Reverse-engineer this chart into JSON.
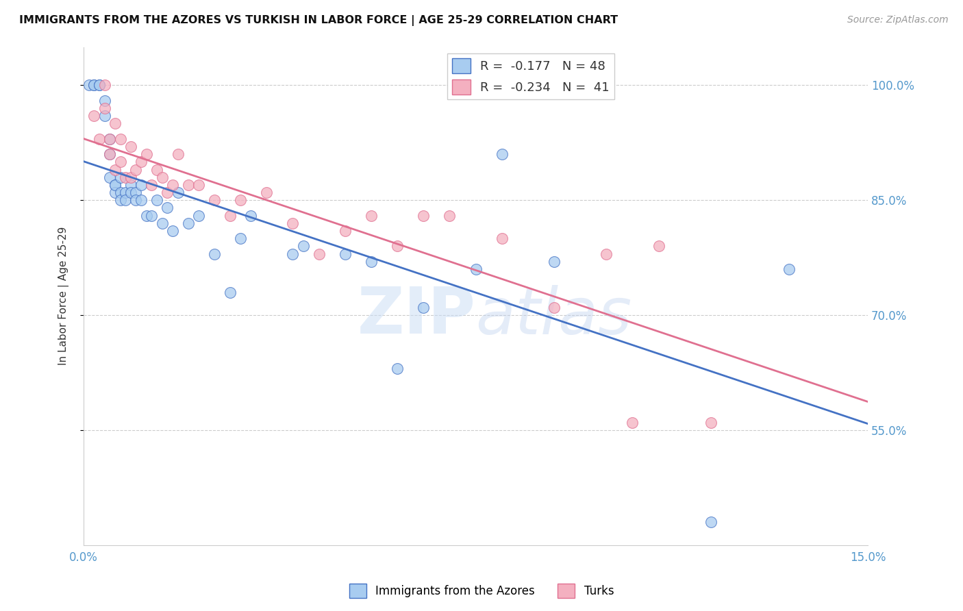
{
  "title": "IMMIGRANTS FROM THE AZORES VS TURKISH IN LABOR FORCE | AGE 25-29 CORRELATION CHART",
  "source": "Source: ZipAtlas.com",
  "ylabel": "In Labor Force | Age 25-29",
  "xlim": [
    0.0,
    0.15
  ],
  "ylim": [
    0.4,
    1.05
  ],
  "xticks": [
    0.0,
    0.03,
    0.06,
    0.09,
    0.12,
    0.15
  ],
  "xticklabels": [
    "0.0%",
    "",
    "",
    "",
    "",
    "15.0%"
  ],
  "ytick_positions": [
    0.55,
    0.7,
    0.85,
    1.0
  ],
  "yticklabels": [
    "55.0%",
    "70.0%",
    "85.0%",
    "100.0%"
  ],
  "r_azores": -0.177,
  "n_azores": 48,
  "r_turks": -0.234,
  "n_turks": 41,
  "color_azores": "#A8CCF0",
  "color_turks": "#F4B0C0",
  "line_color_azores": "#4472C4",
  "line_color_turks": "#E07090",
  "azores_x": [
    0.001,
    0.002,
    0.002,
    0.003,
    0.003,
    0.004,
    0.004,
    0.005,
    0.005,
    0.005,
    0.006,
    0.006,
    0.006,
    0.007,
    0.007,
    0.007,
    0.008,
    0.008,
    0.009,
    0.009,
    0.01,
    0.01,
    0.011,
    0.011,
    0.012,
    0.013,
    0.014,
    0.015,
    0.016,
    0.017,
    0.018,
    0.02,
    0.022,
    0.025,
    0.028,
    0.03,
    0.032,
    0.04,
    0.042,
    0.05,
    0.055,
    0.06,
    0.065,
    0.075,
    0.08,
    0.09,
    0.12,
    0.135
  ],
  "azores_y": [
    1.0,
    1.0,
    1.0,
    1.0,
    1.0,
    0.98,
    0.96,
    0.93,
    0.91,
    0.88,
    0.87,
    0.86,
    0.87,
    0.88,
    0.86,
    0.85,
    0.86,
    0.85,
    0.87,
    0.86,
    0.86,
    0.85,
    0.87,
    0.85,
    0.83,
    0.83,
    0.85,
    0.82,
    0.84,
    0.81,
    0.86,
    0.82,
    0.83,
    0.78,
    0.73,
    0.8,
    0.83,
    0.78,
    0.79,
    0.78,
    0.77,
    0.63,
    0.71,
    0.76,
    0.91,
    0.77,
    0.43,
    0.76
  ],
  "turks_x": [
    0.002,
    0.003,
    0.004,
    0.004,
    0.005,
    0.005,
    0.006,
    0.006,
    0.007,
    0.007,
    0.008,
    0.009,
    0.009,
    0.01,
    0.011,
    0.012,
    0.013,
    0.014,
    0.015,
    0.016,
    0.017,
    0.018,
    0.02,
    0.022,
    0.025,
    0.028,
    0.03,
    0.035,
    0.04,
    0.045,
    0.05,
    0.055,
    0.06,
    0.065,
    0.07,
    0.08,
    0.09,
    0.1,
    0.105,
    0.11,
    0.12
  ],
  "turks_y": [
    0.96,
    0.93,
    1.0,
    0.97,
    0.93,
    0.91,
    0.89,
    0.95,
    0.93,
    0.9,
    0.88,
    0.88,
    0.92,
    0.89,
    0.9,
    0.91,
    0.87,
    0.89,
    0.88,
    0.86,
    0.87,
    0.91,
    0.87,
    0.87,
    0.85,
    0.83,
    0.85,
    0.86,
    0.82,
    0.78,
    0.81,
    0.83,
    0.79,
    0.83,
    0.83,
    0.8,
    0.71,
    0.78,
    0.56,
    0.79,
    0.56
  ],
  "watermark_zip": "ZIP",
  "watermark_atlas": "atlas",
  "background_color": "#ffffff",
  "grid_color": "#cccccc"
}
